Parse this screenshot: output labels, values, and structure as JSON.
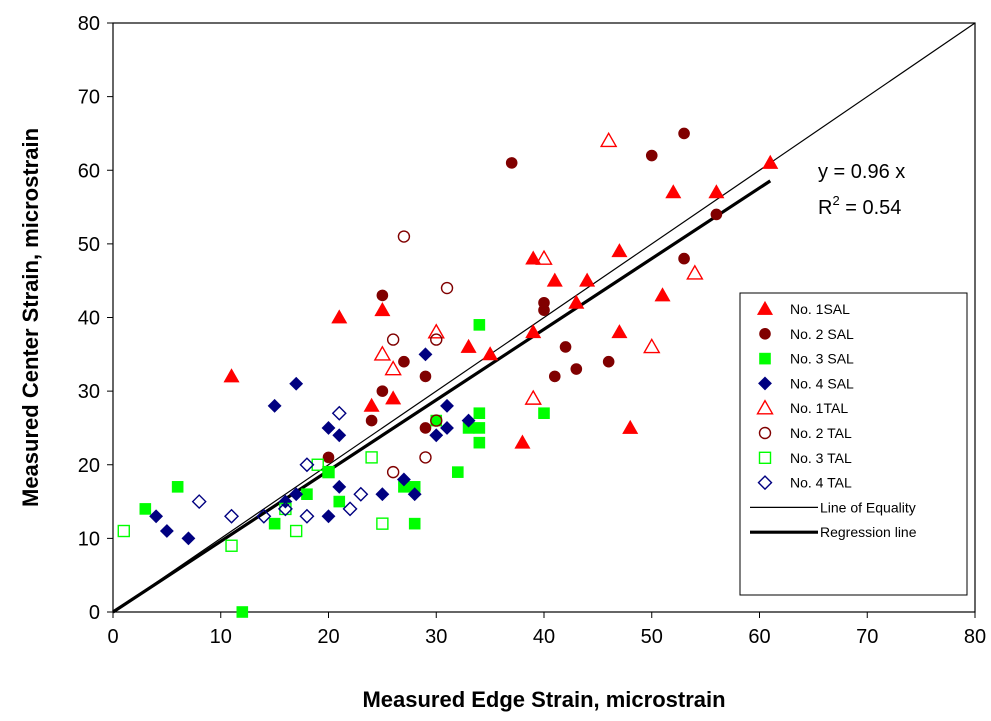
{
  "chart_data": {
    "type": "scatter",
    "xlabel": "Measured Edge Strain, microstrain",
    "ylabel": "Measured Center Strain, microstrain",
    "xlim": [
      0,
      80
    ],
    "ylim": [
      0,
      80
    ],
    "x_ticks": [
      "0",
      "10",
      "20",
      "30",
      "40",
      "50",
      "60",
      "70",
      "80"
    ],
    "y_ticks": [
      "0",
      "10",
      "20",
      "30",
      "40",
      "50",
      "60",
      "70",
      "80"
    ],
    "grid": false,
    "legend_position": "right",
    "annotation": {
      "equation": "y = 0.96 x",
      "r2_prefix": "R",
      "r2_sup": "2",
      "r2_value": " = 0.54"
    },
    "series": [
      {
        "name": "No. 1SAL",
        "marker": "triangle",
        "filled": true,
        "color": "#ff0000",
        "points": [
          [
            11,
            32
          ],
          [
            21,
            40
          ],
          [
            24,
            28
          ],
          [
            25,
            41
          ],
          [
            26,
            29
          ],
          [
            33,
            36
          ],
          [
            35,
            35
          ],
          [
            38,
            23
          ],
          [
            39,
            38
          ],
          [
            39,
            48
          ],
          [
            41,
            45
          ],
          [
            43,
            42
          ],
          [
            44,
            45
          ],
          [
            47,
            38
          ],
          [
            47,
            49
          ],
          [
            48,
            25
          ],
          [
            51,
            43
          ],
          [
            52,
            57
          ],
          [
            56,
            57
          ],
          [
            61,
            61
          ]
        ]
      },
      {
        "name": "No. 2 SAL",
        "marker": "circle",
        "filled": true,
        "color": "#800000",
        "points": [
          [
            20,
            21
          ],
          [
            24,
            26
          ],
          [
            25,
            30
          ],
          [
            25,
            43
          ],
          [
            27,
            34
          ],
          [
            29,
            25
          ],
          [
            29,
            32
          ],
          [
            37,
            61
          ],
          [
            40,
            41
          ],
          [
            40,
            42
          ],
          [
            41,
            32
          ],
          [
            42,
            36
          ],
          [
            43,
            33
          ],
          [
            46,
            34
          ],
          [
            50,
            62
          ],
          [
            53,
            48
          ],
          [
            53,
            65
          ],
          [
            56,
            54
          ]
        ]
      },
      {
        "name": "No. 3 SAL",
        "marker": "square",
        "filled": true,
        "color": "#00ff00",
        "points": [
          [
            3,
            14
          ],
          [
            6,
            17
          ],
          [
            12,
            0
          ],
          [
            15,
            12
          ],
          [
            18,
            16
          ],
          [
            20,
            19
          ],
          [
            21,
            15
          ],
          [
            27,
            17
          ],
          [
            28,
            12
          ],
          [
            28,
            17
          ],
          [
            30,
            26
          ],
          [
            32,
            19
          ],
          [
            33,
            25
          ],
          [
            34,
            23
          ],
          [
            34,
            25
          ],
          [
            34,
            27
          ],
          [
            34,
            39
          ],
          [
            40,
            27
          ]
        ]
      },
      {
        "name": "No. 4 SAL",
        "marker": "diamond",
        "filled": true,
        "color": "#000080",
        "points": [
          [
            4,
            13
          ],
          [
            5,
            11
          ],
          [
            7,
            10
          ],
          [
            15,
            28
          ],
          [
            16,
            15
          ],
          [
            17,
            16
          ],
          [
            17,
            31
          ],
          [
            20,
            13
          ],
          [
            20,
            25
          ],
          [
            21,
            17
          ],
          [
            21,
            24
          ],
          [
            25,
            16
          ],
          [
            27,
            18
          ],
          [
            28,
            16
          ],
          [
            29,
            35
          ],
          [
            30,
            24
          ],
          [
            31,
            25
          ],
          [
            31,
            28
          ],
          [
            33,
            26
          ]
        ]
      },
      {
        "name": "No. 1TAL",
        "marker": "triangle",
        "filled": false,
        "color": "#ff0000",
        "points": [
          [
            25,
            35
          ],
          [
            26,
            33
          ],
          [
            30,
            38
          ],
          [
            39,
            29
          ],
          [
            40,
            48
          ],
          [
            46,
            64
          ],
          [
            50,
            36
          ],
          [
            54,
            46
          ]
        ]
      },
      {
        "name": "No. 2 TAL",
        "marker": "circle",
        "filled": false,
        "color": "#800000",
        "points": [
          [
            26,
            19
          ],
          [
            26,
            37
          ],
          [
            27,
            51
          ],
          [
            29,
            21
          ],
          [
            30,
            26
          ],
          [
            30,
            37
          ],
          [
            31,
            44
          ]
        ]
      },
      {
        "name": "No. 3 TAL",
        "marker": "square",
        "filled": false,
        "color": "#00ff00",
        "points": [
          [
            1,
            11
          ],
          [
            11,
            9
          ],
          [
            16,
            14
          ],
          [
            17,
            11
          ],
          [
            19,
            20
          ],
          [
            20,
            19
          ],
          [
            24,
            21
          ],
          [
            25,
            12
          ]
        ]
      },
      {
        "name": "No. 4 TAL",
        "marker": "diamond",
        "filled": false,
        "color": "#000080",
        "points": [
          [
            8,
            15
          ],
          [
            11,
            13
          ],
          [
            14,
            13
          ],
          [
            16,
            14
          ],
          [
            18,
            20
          ],
          [
            18,
            13
          ],
          [
            21,
            27
          ],
          [
            22,
            14
          ],
          [
            23,
            16
          ]
        ]
      }
    ],
    "lines": [
      {
        "name": "Line of Equality",
        "x": [
          0,
          80
        ],
        "y": [
          0,
          80
        ],
        "width": "thin"
      },
      {
        "name": "Regression line",
        "x": [
          0,
          61
        ],
        "y": [
          0,
          58.56
        ],
        "width": "thick"
      }
    ]
  }
}
